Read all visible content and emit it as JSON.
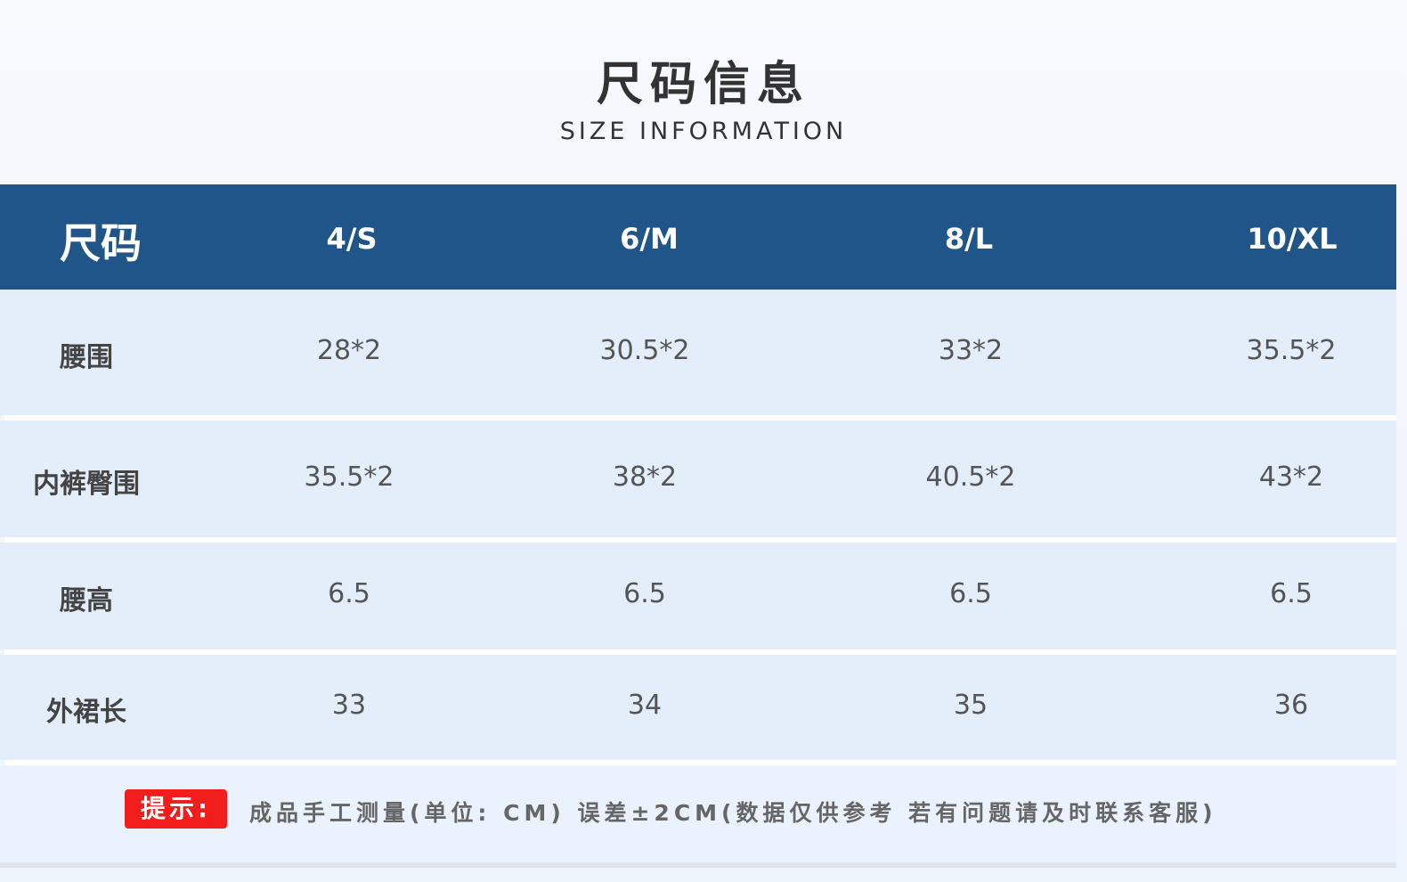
{
  "title": "尺码信息",
  "subtitle": "SIZE INFORMATION",
  "header": [
    "尺码",
    "4/S",
    "6/M",
    "8/L",
    "10/XL"
  ],
  "rows": [
    [
      "腰围",
      "28*2",
      "30.5*2",
      "33*2",
      "35.5*2"
    ],
    [
      "内裤臀围",
      "35.5*2",
      "38*2",
      "40.5*2",
      "43*2"
    ],
    [
      "腰高",
      "6.5",
      "6.5",
      "6.5",
      "6.5"
    ],
    [
      "外裙长",
      "33",
      "34",
      "35",
      "36"
    ]
  ],
  "note": {
    "badge": "提示:",
    "text": "成品手工测量(单位: CM) 误差±2CM(数据仅供参考  若有问题请及时联系客服)"
  },
  "colors": {
    "header": "#1f5589",
    "badge": "#f21d1d"
  }
}
